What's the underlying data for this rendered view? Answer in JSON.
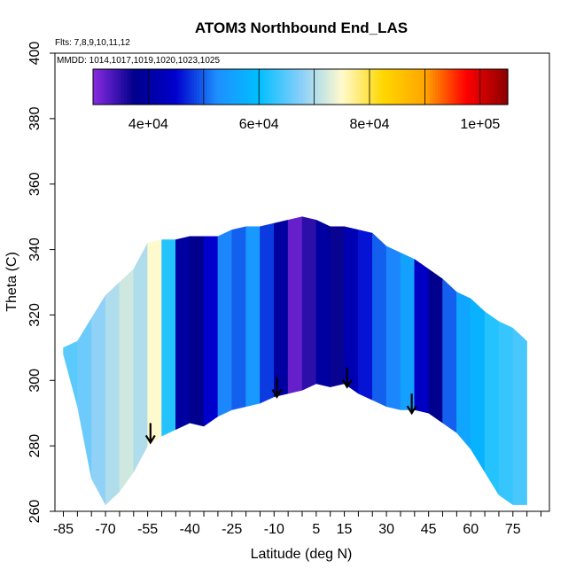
{
  "chart_data": {
    "type": "heatmap",
    "title": "ATOM3 Northbound End_LAS",
    "annotations": [
      "Flts: 7,8,9,10,11,12",
      "MMDD: 1014,1017,1019,1020,1023,1025"
    ],
    "xlabel": "Latitude (deg N)",
    "ylabel": "Theta (C)",
    "xlim": [
      -88,
      88
    ],
    "ylim": [
      260,
      400
    ],
    "x_ticks": [
      -85,
      -70,
      -55,
      -40,
      -25,
      -10,
      5,
      15,
      30,
      45,
      60,
      75
    ],
    "x_tick_labels": [
      "-85",
      "-70",
      "-55",
      "-40",
      "-25",
      "-10",
      "5",
      "15",
      "30",
      "45",
      "60",
      "75"
    ],
    "y_ticks": [
      260,
      280,
      300,
      320,
      340,
      360,
      380,
      400
    ],
    "y_tick_labels": [
      "260",
      "280",
      "300",
      "320",
      "340",
      "360",
      "380",
      "400"
    ],
    "colorbar": {
      "range": [
        30000,
        105000
      ],
      "ticks": [
        40000,
        60000,
        80000,
        100000
      ],
      "tick_labels": [
        "4e+04",
        "6e+04",
        "8e+04",
        "1e+05"
      ],
      "colors": [
        "#8a2be2",
        "#00008b",
        "#0000cd",
        "#1e90ff",
        "#00bfff",
        "#87cefa",
        "#fffacd",
        "#ffd700",
        "#ffa500",
        "#ff0000",
        "#8b0000"
      ]
    },
    "curtain_envelope": {
      "latitude": [
        -85,
        -80,
        -75,
        -70,
        -65,
        -60,
        -55,
        -50,
        -45,
        -40,
        -35,
        -30,
        -25,
        -20,
        -15,
        -10,
        -5,
        0,
        5,
        10,
        15,
        20,
        25,
        30,
        35,
        40,
        45,
        50,
        55,
        60,
        65,
        70,
        75,
        80
      ],
      "theta_bottom": [
        308,
        292,
        270,
        262,
        266,
        272,
        280,
        283,
        285,
        287,
        286,
        289,
        291,
        292,
        293,
        295,
        296,
        297,
        299,
        298,
        299,
        296,
        294,
        292,
        291,
        291,
        290,
        287,
        284,
        279,
        272,
        265,
        262,
        262
      ],
      "theta_top": [
        310,
        312,
        319,
        326,
        330,
        334,
        342,
        343,
        343,
        344,
        344,
        344,
        346,
        347,
        347,
        348,
        349,
        350,
        349,
        347,
        347,
        346,
        345,
        341,
        339,
        337,
        334,
        331,
        327,
        325,
        321,
        318,
        316,
        312
      ],
      "value": [
        65000,
        66000,
        68000,
        70000,
        72000,
        70000,
        75000,
        62000,
        40000,
        38000,
        45000,
        52000,
        50000,
        54000,
        48000,
        40000,
        32000,
        35000,
        40000,
        37000,
        42000,
        46000,
        50000,
        52000,
        55000,
        44000,
        38000,
        50000,
        56000,
        58000,
        62000,
        63000,
        64000,
        65000
      ]
    },
    "tropopause_arrows": [
      {
        "latitude": -54,
        "theta": 281
      },
      {
        "latitude": -9,
        "theta": 295
      },
      {
        "latitude": 16,
        "theta": 298
      },
      {
        "latitude": 39,
        "theta": 290
      }
    ]
  }
}
